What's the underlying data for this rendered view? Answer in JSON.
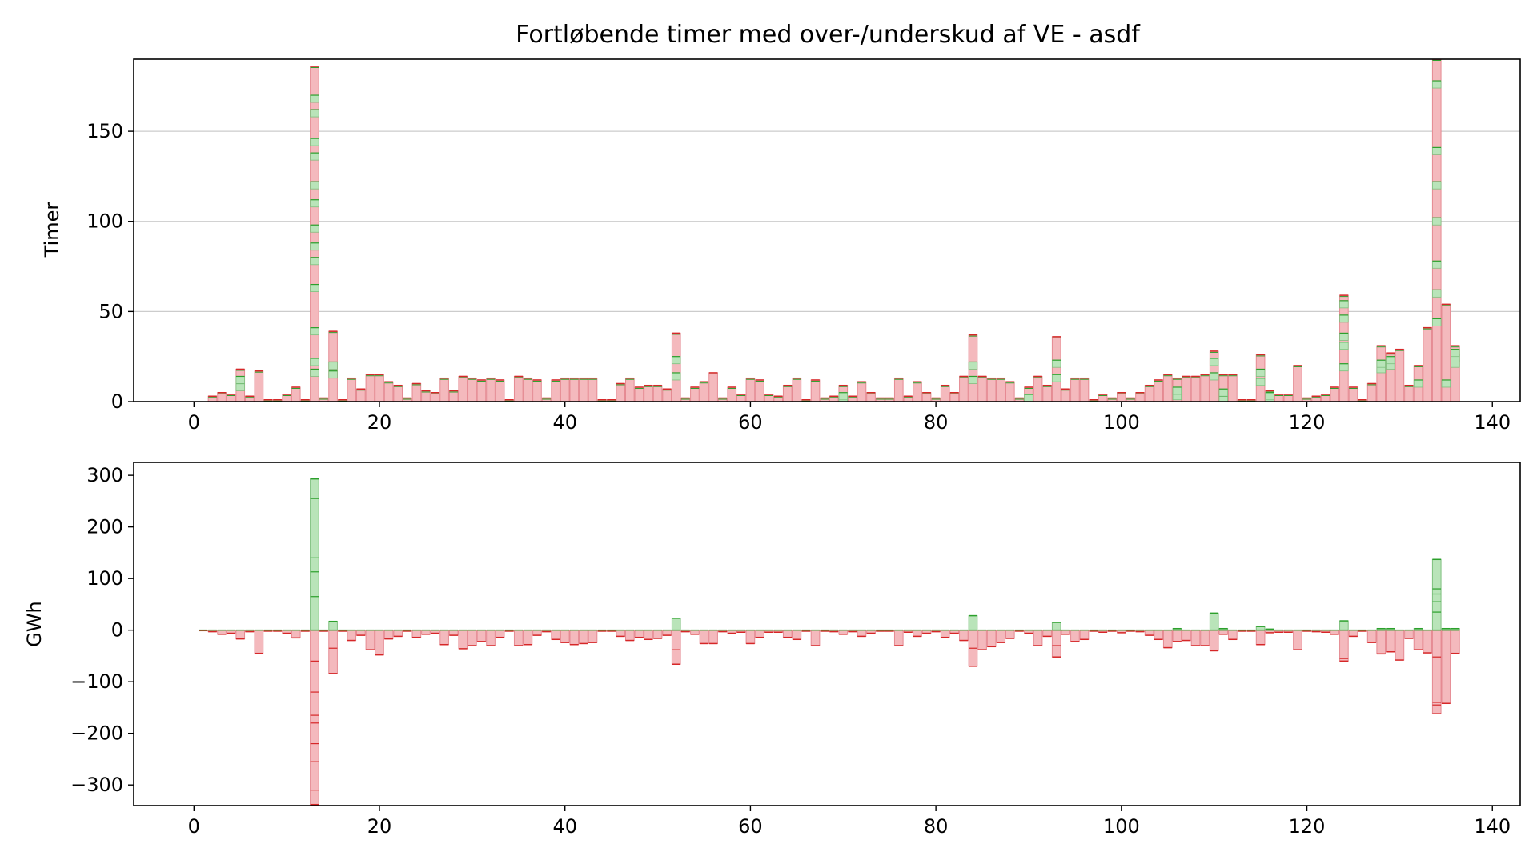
{
  "title": "Fortløbende timer med over-/underskud af VE - asdf",
  "colors": {
    "surplus_fill": "#b9e4b9",
    "surplus_edge": "#7fc07f",
    "deficit_fill": "#f4b9bd",
    "deficit_edge": "#e58a92",
    "cap_red": "#d62728",
    "cap_green": "#2ca02c",
    "grid": "#cccccc"
  },
  "chart_data": [
    {
      "type": "bar",
      "stacked": true,
      "ylabel": "Timer",
      "xlim": [
        -6.5,
        143.0
      ],
      "ylim": [
        0,
        190
      ],
      "xticks": [
        0,
        20,
        40,
        60,
        80,
        100,
        120,
        140
      ],
      "yticks": [
        0,
        50,
        100,
        150
      ],
      "ygrid": true,
      "bars": [
        {
          "x": 2,
          "h": 3
        },
        {
          "x": 3,
          "h": 5
        },
        {
          "x": 4,
          "h": 4
        },
        {
          "x": 5,
          "h": 18,
          "green": [
            10,
            14
          ]
        },
        {
          "x": 6,
          "h": 3
        },
        {
          "x": 7,
          "h": 17
        },
        {
          "x": 8,
          "h": 1
        },
        {
          "x": 9,
          "h": 1
        },
        {
          "x": 10,
          "h": 4
        },
        {
          "x": 11,
          "h": 8
        },
        {
          "x": 12,
          "h": 1
        },
        {
          "x": 13,
          "h": 186,
          "green": [
            18,
            24,
            41,
            65,
            80,
            88,
            98,
            112,
            122,
            138,
            146,
            162,
            170
          ]
        },
        {
          "x": 14,
          "h": 2
        },
        {
          "x": 15,
          "h": 39,
          "green": [
            17,
            22
          ]
        },
        {
          "x": 16,
          "h": 1
        },
        {
          "x": 17,
          "h": 13
        },
        {
          "x": 18,
          "h": 7
        },
        {
          "x": 19,
          "h": 15
        },
        {
          "x": 20,
          "h": 15
        },
        {
          "x": 21,
          "h": 11
        },
        {
          "x": 22,
          "h": 9
        },
        {
          "x": 23,
          "h": 2
        },
        {
          "x": 24,
          "h": 10
        },
        {
          "x": 25,
          "h": 6
        },
        {
          "x": 26,
          "h": 5
        },
        {
          "x": 27,
          "h": 13
        },
        {
          "x": 28,
          "h": 6
        },
        {
          "x": 29,
          "h": 14
        },
        {
          "x": 30,
          "h": 13
        },
        {
          "x": 31,
          "h": 12
        },
        {
          "x": 32,
          "h": 13
        },
        {
          "x": 33,
          "h": 12
        },
        {
          "x": 34,
          "h": 1
        },
        {
          "x": 35,
          "h": 14
        },
        {
          "x": 36,
          "h": 13
        },
        {
          "x": 37,
          "h": 12
        },
        {
          "x": 38,
          "h": 2
        },
        {
          "x": 39,
          "h": 12
        },
        {
          "x": 40,
          "h": 13
        },
        {
          "x": 41,
          "h": 13
        },
        {
          "x": 42,
          "h": 13
        },
        {
          "x": 43,
          "h": 13
        },
        {
          "x": 44,
          "h": 1
        },
        {
          "x": 45,
          "h": 1
        },
        {
          "x": 46,
          "h": 10
        },
        {
          "x": 47,
          "h": 13
        },
        {
          "x": 48,
          "h": 8
        },
        {
          "x": 49,
          "h": 9
        },
        {
          "x": 50,
          "h": 9
        },
        {
          "x": 51,
          "h": 7
        },
        {
          "x": 52,
          "h": 38,
          "green": [
            16,
            25
          ]
        },
        {
          "x": 53,
          "h": 2
        },
        {
          "x": 54,
          "h": 8
        },
        {
          "x": 55,
          "h": 11
        },
        {
          "x": 56,
          "h": 16
        },
        {
          "x": 57,
          "h": 2
        },
        {
          "x": 58,
          "h": 8
        },
        {
          "x": 59,
          "h": 4
        },
        {
          "x": 60,
          "h": 13
        },
        {
          "x": 61,
          "h": 12
        },
        {
          "x": 62,
          "h": 4
        },
        {
          "x": 63,
          "h": 3
        },
        {
          "x": 64,
          "h": 9
        },
        {
          "x": 65,
          "h": 13
        },
        {
          "x": 66,
          "h": 1
        },
        {
          "x": 67,
          "h": 12
        },
        {
          "x": 68,
          "h": 2
        },
        {
          "x": 69,
          "h": 3
        },
        {
          "x": 70,
          "h": 9,
          "green": [
            3,
            5
          ]
        },
        {
          "x": 71,
          "h": 3
        },
        {
          "x": 72,
          "h": 11
        },
        {
          "x": 73,
          "h": 5
        },
        {
          "x": 74,
          "h": 2
        },
        {
          "x": 75,
          "h": 2
        },
        {
          "x": 76,
          "h": 13
        },
        {
          "x": 77,
          "h": 3
        },
        {
          "x": 78,
          "h": 11
        },
        {
          "x": 79,
          "h": 5
        },
        {
          "x": 80,
          "h": 2
        },
        {
          "x": 81,
          "h": 9
        },
        {
          "x": 82,
          "h": 5
        },
        {
          "x": 83,
          "h": 14
        },
        {
          "x": 84,
          "h": 37,
          "green": [
            14,
            22
          ]
        },
        {
          "x": 85,
          "h": 14
        },
        {
          "x": 86,
          "h": 13
        },
        {
          "x": 87,
          "h": 13
        },
        {
          "x": 88,
          "h": 11
        },
        {
          "x": 89,
          "h": 2
        },
        {
          "x": 90,
          "h": 8,
          "green": [
            2,
            4
          ]
        },
        {
          "x": 91,
          "h": 14
        },
        {
          "x": 92,
          "h": 9
        },
        {
          "x": 93,
          "h": 36,
          "green": [
            15,
            23
          ]
        },
        {
          "x": 94,
          "h": 7
        },
        {
          "x": 95,
          "h": 13
        },
        {
          "x": 96,
          "h": 13
        },
        {
          "x": 97,
          "h": 1
        },
        {
          "x": 98,
          "h": 4
        },
        {
          "x": 99,
          "h": 2
        },
        {
          "x": 100,
          "h": 5
        },
        {
          "x": 101,
          "h": 2
        },
        {
          "x": 102,
          "h": 5
        },
        {
          "x": 103,
          "h": 9
        },
        {
          "x": 104,
          "h": 12
        },
        {
          "x": 105,
          "h": 15
        },
        {
          "x": 106,
          "h": 13,
          "green": [
            5,
            8
          ]
        },
        {
          "x": 107,
          "h": 14
        },
        {
          "x": 108,
          "h": 14
        },
        {
          "x": 109,
          "h": 15
        },
        {
          "x": 110,
          "h": 28,
          "green": [
            16,
            24
          ]
        },
        {
          "x": 111,
          "h": 15,
          "green": [
            3,
            7
          ]
        },
        {
          "x": 112,
          "h": 15
        },
        {
          "x": 113,
          "h": 1
        },
        {
          "x": 114,
          "h": 1
        },
        {
          "x": 115,
          "h": 26,
          "green": [
            13,
            18
          ]
        },
        {
          "x": 116,
          "h": 6,
          "green": [
            4,
            5
          ]
        },
        {
          "x": 117,
          "h": 4
        },
        {
          "x": 118,
          "h": 4
        },
        {
          "x": 119,
          "h": 20
        },
        {
          "x": 120,
          "h": 2
        },
        {
          "x": 121,
          "h": 3
        },
        {
          "x": 122,
          "h": 4
        },
        {
          "x": 123,
          "h": 8
        },
        {
          "x": 124,
          "h": 59,
          "green": [
            21,
            33,
            38,
            48,
            56
          ]
        },
        {
          "x": 125,
          "h": 8
        },
        {
          "x": 126,
          "h": 1
        },
        {
          "x": 127,
          "h": 10
        },
        {
          "x": 128,
          "h": 31,
          "green": [
            20,
            23
          ]
        },
        {
          "x": 129,
          "h": 27,
          "green": [
            22,
            25
          ]
        },
        {
          "x": 130,
          "h": 29
        },
        {
          "x": 131,
          "h": 9
        },
        {
          "x": 132,
          "h": 20,
          "green": [
            12
          ]
        },
        {
          "x": 133,
          "h": 41
        },
        {
          "x": 134,
          "h": 190,
          "green": [
            46,
            62,
            78,
            102,
            122,
            141,
            178
          ]
        },
        {
          "x": 135,
          "h": 54,
          "green": [
            12
          ]
        },
        {
          "x": 136,
          "h": 31,
          "green": [
            23,
            26,
            29
          ]
        }
      ]
    },
    {
      "type": "bar",
      "stacked": true,
      "ylabel": "GWh",
      "xlim": [
        -6.5,
        143.0
      ],
      "ylim": [
        -340,
        325
      ],
      "xticks": [
        0,
        20,
        40,
        60,
        80,
        100,
        120,
        140
      ],
      "yticks": [
        300,
        200,
        100,
        0,
        -100,
        -200,
        -300
      ],
      "ygrid": false,
      "bars": [
        {
          "x": 1,
          "v": -1
        },
        {
          "x": 2,
          "v": -3
        },
        {
          "x": 3,
          "v": -8
        },
        {
          "x": 4,
          "v": -6
        },
        {
          "x": 5,
          "v": -17
        },
        {
          "x": 6,
          "v": -3
        },
        {
          "x": 7,
          "v": -45
        },
        {
          "x": 8,
          "v": -2
        },
        {
          "x": 9,
          "v": -2
        },
        {
          "x": 10,
          "v": -6
        },
        {
          "x": 11,
          "v": -15
        },
        {
          "x": 12,
          "v": -2
        },
        {
          "x": 13,
          "v": -338,
          "pos": 293,
          "marks_pos": [
            65,
            113,
            140,
            255
          ],
          "marks_neg": [
            -60,
            -120,
            -165,
            -180,
            -220,
            -255,
            -310
          ]
        },
        {
          "x": 14,
          "v": -2
        },
        {
          "x": 15,
          "v": -84,
          "pos": 17,
          "marks_neg": [
            -35
          ]
        },
        {
          "x": 16,
          "v": -2
        },
        {
          "x": 17,
          "v": -20
        },
        {
          "x": 18,
          "v": -10
        },
        {
          "x": 19,
          "v": -38
        },
        {
          "x": 20,
          "v": -48
        },
        {
          "x": 21,
          "v": -17
        },
        {
          "x": 22,
          "v": -12
        },
        {
          "x": 23,
          "v": -2
        },
        {
          "x": 24,
          "v": -14
        },
        {
          "x": 25,
          "v": -8
        },
        {
          "x": 26,
          "v": -6
        },
        {
          "x": 27,
          "v": -28
        },
        {
          "x": 28,
          "v": -10
        },
        {
          "x": 29,
          "v": -36
        },
        {
          "x": 30,
          "v": -30
        },
        {
          "x": 31,
          "v": -22
        },
        {
          "x": 32,
          "v": -30
        },
        {
          "x": 33,
          "v": -14
        },
        {
          "x": 34,
          "v": -2
        },
        {
          "x": 35,
          "v": -30
        },
        {
          "x": 36,
          "v": -28
        },
        {
          "x": 37,
          "v": -10
        },
        {
          "x": 38,
          "v": -3
        },
        {
          "x": 39,
          "v": -18
        },
        {
          "x": 40,
          "v": -24
        },
        {
          "x": 41,
          "v": -28
        },
        {
          "x": 42,
          "v": -26
        },
        {
          "x": 43,
          "v": -24
        },
        {
          "x": 44,
          "v": -2
        },
        {
          "x": 45,
          "v": -2
        },
        {
          "x": 46,
          "v": -12
        },
        {
          "x": 47,
          "v": -20
        },
        {
          "x": 48,
          "v": -14
        },
        {
          "x": 49,
          "v": -18
        },
        {
          "x": 50,
          "v": -16
        },
        {
          "x": 51,
          "v": -10
        },
        {
          "x": 52,
          "v": -66,
          "pos": 23,
          "marks_neg": [
            -38
          ]
        },
        {
          "x": 53,
          "v": -3
        },
        {
          "x": 54,
          "v": -8
        },
        {
          "x": 55,
          "v": -26
        },
        {
          "x": 56,
          "v": -26
        },
        {
          "x": 57,
          "v": -3
        },
        {
          "x": 58,
          "v": -6
        },
        {
          "x": 59,
          "v": -4
        },
        {
          "x": 60,
          "v": -26
        },
        {
          "x": 61,
          "v": -14
        },
        {
          "x": 62,
          "v": -4
        },
        {
          "x": 63,
          "v": -4
        },
        {
          "x": 64,
          "v": -14
        },
        {
          "x": 65,
          "v": -18
        },
        {
          "x": 66,
          "v": -2
        },
        {
          "x": 67,
          "v": -30
        },
        {
          "x": 68,
          "v": -2
        },
        {
          "x": 69,
          "v": -3
        },
        {
          "x": 70,
          "v": -8
        },
        {
          "x": 71,
          "v": -3
        },
        {
          "x": 72,
          "v": -12
        },
        {
          "x": 73,
          "v": -6
        },
        {
          "x": 74,
          "v": -2
        },
        {
          "x": 75,
          "v": -2
        },
        {
          "x": 76,
          "v": -30
        },
        {
          "x": 77,
          "v": -4
        },
        {
          "x": 78,
          "v": -12
        },
        {
          "x": 79,
          "v": -6
        },
        {
          "x": 80,
          "v": -3
        },
        {
          "x": 81,
          "v": -14
        },
        {
          "x": 82,
          "v": -6
        },
        {
          "x": 83,
          "v": -20
        },
        {
          "x": 84,
          "v": -70,
          "pos": 28,
          "marks_neg": [
            -35
          ]
        },
        {
          "x": 85,
          "v": -38
        },
        {
          "x": 86,
          "v": -32
        },
        {
          "x": 87,
          "v": -24
        },
        {
          "x": 88,
          "v": -16
        },
        {
          "x": 89,
          "v": -2
        },
        {
          "x": 90,
          "v": -6
        },
        {
          "x": 91,
          "v": -30
        },
        {
          "x": 92,
          "v": -12
        },
        {
          "x": 93,
          "v": -52,
          "pos": 15,
          "marks_neg": [
            -30
          ]
        },
        {
          "x": 94,
          "v": -8
        },
        {
          "x": 95,
          "v": -22
        },
        {
          "x": 96,
          "v": -18
        },
        {
          "x": 97,
          "v": -2
        },
        {
          "x": 98,
          "v": -4
        },
        {
          "x": 99,
          "v": -2
        },
        {
          "x": 100,
          "v": -5
        },
        {
          "x": 101,
          "v": -2
        },
        {
          "x": 102,
          "v": -3
        },
        {
          "x": 103,
          "v": -10
        },
        {
          "x": 104,
          "v": -18
        },
        {
          "x": 105,
          "v": -34
        },
        {
          "x": 106,
          "v": -22,
          "pos": 3
        },
        {
          "x": 107,
          "v": -20
        },
        {
          "x": 108,
          "v": -30
        },
        {
          "x": 109,
          "v": -30
        },
        {
          "x": 110,
          "v": -40,
          "pos": 33
        },
        {
          "x": 111,
          "v": -8,
          "pos": 3
        },
        {
          "x": 112,
          "v": -18
        },
        {
          "x": 113,
          "v": -2
        },
        {
          "x": 114,
          "v": -2
        },
        {
          "x": 115,
          "v": -28,
          "pos": 7
        },
        {
          "x": 116,
          "v": -5,
          "pos": 2
        },
        {
          "x": 117,
          "v": -4
        },
        {
          "x": 118,
          "v": -4
        },
        {
          "x": 119,
          "v": -38
        },
        {
          "x": 120,
          "v": -2
        },
        {
          "x": 121,
          "v": -3
        },
        {
          "x": 122,
          "v": -4
        },
        {
          "x": 123,
          "v": -8
        },
        {
          "x": 124,
          "v": -60,
          "pos": 18,
          "marks_neg": [
            -55
          ]
        },
        {
          "x": 125,
          "v": -12
        },
        {
          "x": 126,
          "v": -2
        },
        {
          "x": 127,
          "v": -24
        },
        {
          "x": 128,
          "v": -46,
          "pos": 3
        },
        {
          "x": 129,
          "v": -42,
          "pos": 3
        },
        {
          "x": 130,
          "v": -58
        },
        {
          "x": 131,
          "v": -16
        },
        {
          "x": 132,
          "v": -38,
          "pos": 3
        },
        {
          "x": 133,
          "v": -44
        },
        {
          "x": 134,
          "v": -162,
          "pos": 137,
          "marks_pos": [
            35,
            55,
            70,
            80
          ],
          "marks_neg": [
            -52,
            -140,
            -145
          ]
        },
        {
          "x": 135,
          "v": -142,
          "pos": 3
        },
        {
          "x": 136,
          "v": -45,
          "pos": 3
        }
      ]
    }
  ]
}
